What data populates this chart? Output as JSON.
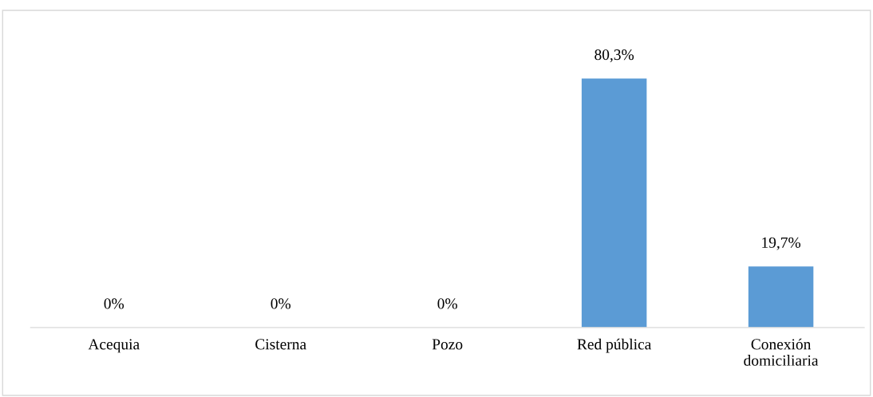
{
  "chart_data": {
    "type": "bar",
    "categories": [
      "Acequia",
      "Cisterna",
      "Pozo",
      "Red pública",
      "Conexión\ndomiciliaria"
    ],
    "values": [
      0,
      0,
      0,
      80.3,
      19.7
    ],
    "value_labels": [
      "0%",
      "0%",
      "0%",
      "80,3%",
      "19,7%"
    ],
    "color": "#5b9bd5"
  }
}
